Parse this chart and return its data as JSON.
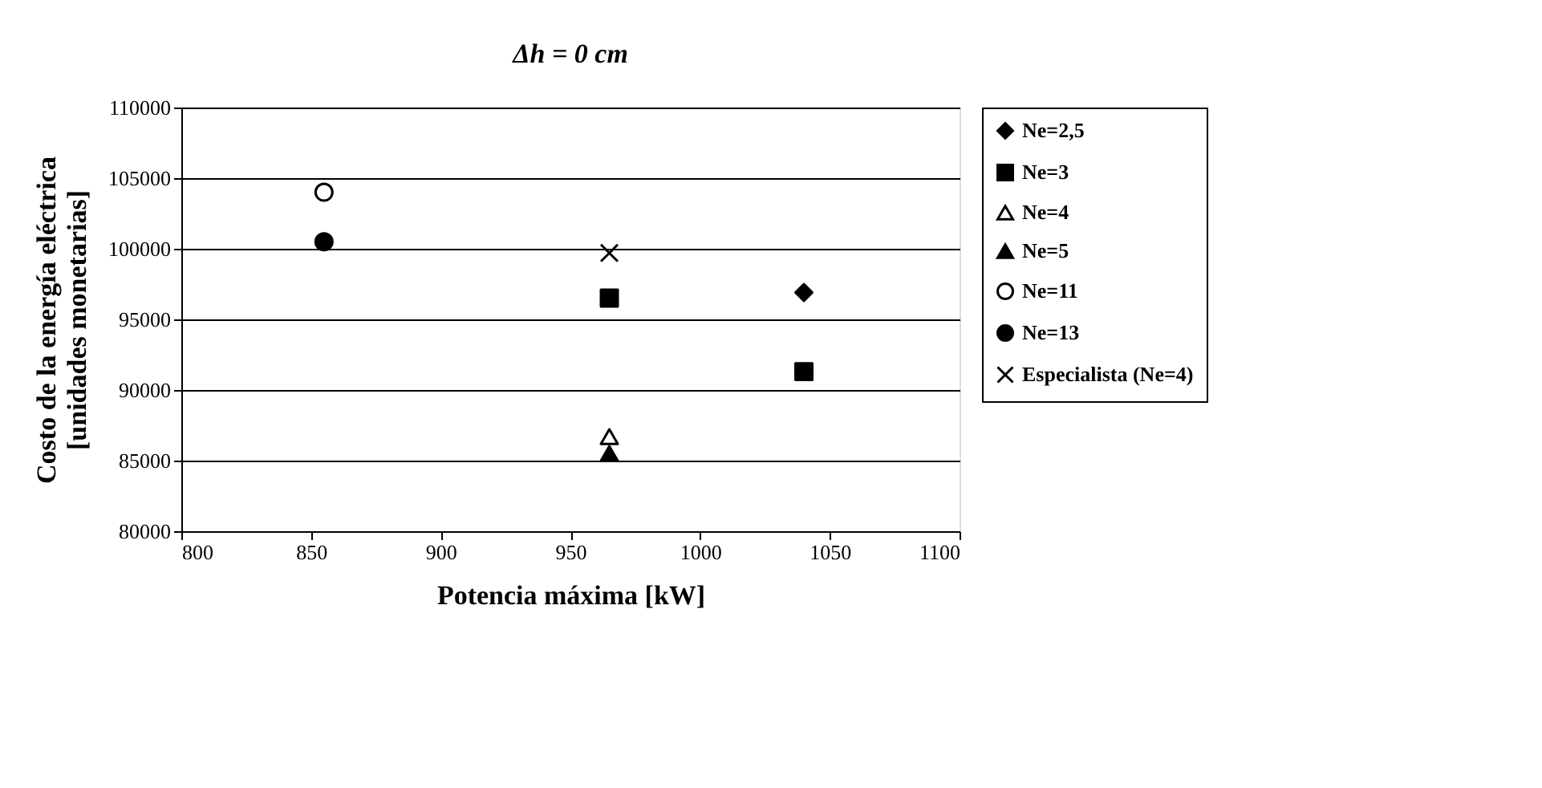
{
  "chart_data": {
    "type": "scatter",
    "title": "Δh = 0 cm",
    "xlabel": "Potencia máxima [kW]",
    "ylabel": "Costo de la energía eléctrica [unidades monetarias]",
    "xlim": [
      800,
      1100
    ],
    "xticks": [
      800,
      850,
      900,
      950,
      1000,
      1050,
      1100
    ],
    "ylim": [
      80000,
      110000
    ],
    "yticks": [
      80000,
      85000,
      90000,
      95000,
      100000,
      105000,
      110000
    ],
    "grid": "y",
    "legend": "right",
    "series": [
      {
        "name": "Ne=2,5",
        "color": "#000000",
        "marker": "diamond",
        "x": [
          1040
        ],
        "values": [
          96900
        ]
      },
      {
        "name": "Ne=3",
        "color": "#000000",
        "marker": "square",
        "x": [
          965,
          1040
        ],
        "values": [
          96500,
          91300
        ]
      },
      {
        "name": "Ne=4",
        "color": "#ffffff",
        "marker": "triangle",
        "x": [
          965
        ],
        "values": [
          86700
        ]
      },
      {
        "name": "Ne=5",
        "color": "#000000",
        "marker": "triangle",
        "x": [
          965
        ],
        "values": [
          85500
        ]
      },
      {
        "name": "Ne=11",
        "color": "#ffffff",
        "marker": "circle",
        "x": [
          855
        ],
        "values": [
          104000
        ]
      },
      {
        "name": "Ne=13",
        "color": "#000000",
        "marker": "circle",
        "x": [
          855
        ],
        "values": [
          100500
        ]
      },
      {
        "name": "Especialista (Ne=4)",
        "color": "#000000",
        "marker": "cross",
        "x": [
          965
        ],
        "values": [
          99700
        ]
      }
    ]
  }
}
